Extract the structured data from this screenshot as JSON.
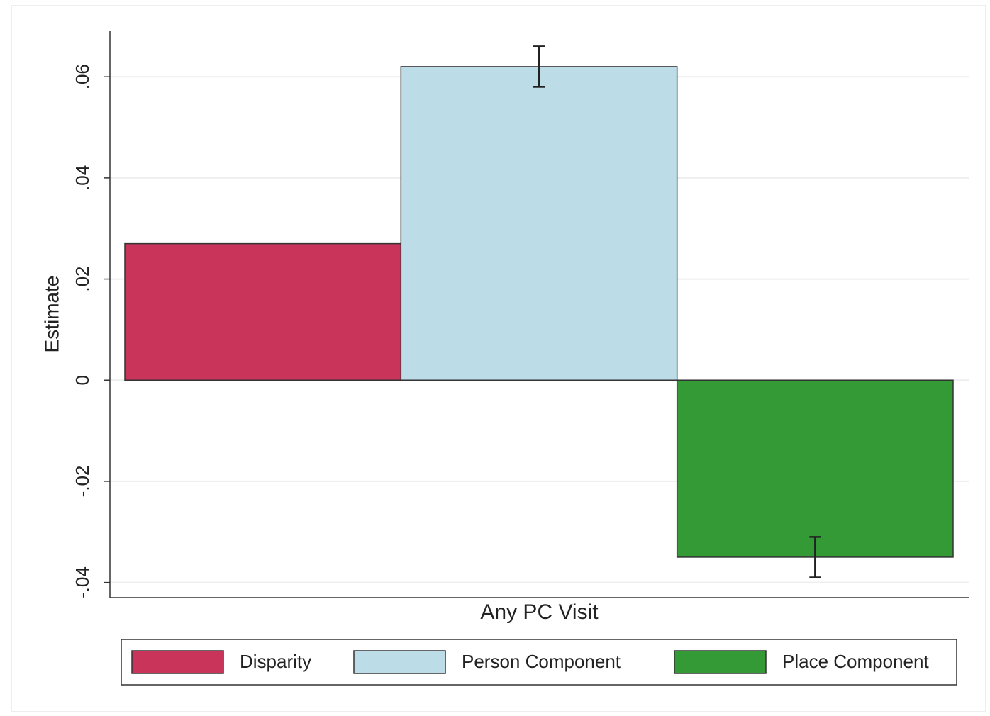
{
  "chart_data": {
    "type": "bar",
    "categories": [
      "Any PC Visit"
    ],
    "y_label": "Estimate",
    "series": [
      {
        "name": "Disparity",
        "color": "#c9345a",
        "values": [
          0.027
        ]
      },
      {
        "name": "Person Component",
        "color": "#bcdde8",
        "values": [
          0.062
        ],
        "errors": [
          0.004
        ]
      },
      {
        "name": "Place Component",
        "color": "#339a36",
        "values": [
          -0.035
        ],
        "errors": [
          0.004
        ]
      }
    ],
    "ylim": [
      -0.043,
      0.069
    ],
    "yticks": [
      {
        "value": -0.04,
        "label": "-.04"
      },
      {
        "value": -0.02,
        "label": "-.02"
      },
      0,
      {
        "value": 0.02,
        "label": ".02"
      },
      {
        "value": 0.04,
        "label": ".04"
      },
      {
        "value": 0.06,
        "label": ".06"
      }
    ],
    "grid": true,
    "legend": "bottom"
  }
}
